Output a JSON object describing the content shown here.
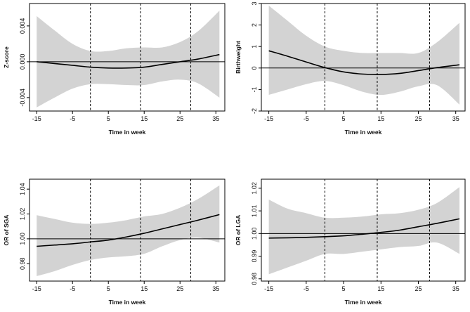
{
  "chart_data": [
    {
      "id": "zscore",
      "type": "line",
      "ylabel": "Z-score",
      "xlabel": "Time in week",
      "xlim": [
        -17,
        37.5
      ],
      "ylim": [
        -0.0055,
        0.0065
      ],
      "xticks": [
        -15,
        -5,
        5,
        15,
        25,
        35
      ],
      "yticks": [
        -0.004,
        0.0,
        0.004
      ],
      "ytick_labels": [
        "-0.004",
        "0.000",
        "0.004"
      ],
      "reference_y": 0.0,
      "vlines": [
        0,
        14,
        28
      ],
      "x": [
        -15,
        -10,
        -5,
        0,
        5,
        10,
        15,
        20,
        25,
        30,
        36
      ],
      "estimate": [
        0.0,
        -0.0002,
        -0.0004,
        -0.0006,
        -0.0007,
        -0.0007,
        -0.0006,
        -0.0003,
        0.0,
        0.0003,
        0.0008
      ],
      "lower": [
        -0.0051,
        -0.004,
        -0.003,
        -0.0025,
        -0.0025,
        -0.0026,
        -0.0026,
        -0.0022,
        -0.002,
        -0.0024,
        -0.004
      ],
      "upper": [
        0.0051,
        0.0035,
        0.002,
        0.0012,
        0.0012,
        0.0015,
        0.0016,
        0.0016,
        0.0022,
        0.0034,
        0.0057
      ]
    },
    {
      "id": "birthweight",
      "type": "line",
      "ylabel": "Birthweight",
      "xlabel": "Time in week",
      "xlim": [
        -17,
        37.5
      ],
      "ylim": [
        -2,
        3
      ],
      "xticks": [
        -15,
        -5,
        5,
        15,
        25,
        35
      ],
      "yticks": [
        -2,
        -1,
        0,
        1,
        2,
        3
      ],
      "ytick_labels": [
        "-2",
        "-1",
        "0",
        "1",
        "2",
        "3"
      ],
      "reference_y": 0,
      "vlines": [
        0,
        14,
        28
      ],
      "x": [
        -15,
        -10,
        -5,
        0,
        5,
        10,
        15,
        20,
        25,
        30,
        36
      ],
      "estimate": [
        0.8,
        0.55,
        0.28,
        0.02,
        -0.18,
        -0.28,
        -0.3,
        -0.25,
        -0.12,
        0.02,
        0.15
      ],
      "lower": [
        -1.25,
        -1.0,
        -0.75,
        -0.6,
        -0.8,
        -1.1,
        -1.25,
        -1.1,
        -0.85,
        -0.8,
        -1.7
      ],
      "upper": [
        2.9,
        2.2,
        1.5,
        1.0,
        0.8,
        0.7,
        0.7,
        0.7,
        0.7,
        1.2,
        2.1
      ]
    },
    {
      "id": "or_sga",
      "type": "line",
      "ylabel": "OR of SGA",
      "xlabel": "Time in week",
      "xlim": [
        -17,
        37.5
      ],
      "ylim": [
        0.966,
        1.048
      ],
      "xticks": [
        -15,
        -5,
        5,
        15,
        25,
        35
      ],
      "yticks": [
        0.98,
        1.0,
        1.02,
        1.04
      ],
      "ytick_labels": [
        "0.98",
        "1.00",
        "1.02",
        "1.04"
      ],
      "reference_y": 1.0,
      "vlines": [
        0,
        14,
        28
      ],
      "x": [
        -15,
        -10,
        -5,
        0,
        5,
        10,
        15,
        20,
        25,
        30,
        36
      ],
      "estimate": [
        0.994,
        0.995,
        0.996,
        0.9975,
        0.999,
        1.0015,
        1.0045,
        1.008,
        1.0115,
        1.015,
        1.0195
      ],
      "lower": [
        0.97,
        0.974,
        0.979,
        0.983,
        0.985,
        0.986,
        0.988,
        0.994,
        0.999,
        1.001,
        0.997
      ],
      "upper": [
        1.019,
        1.016,
        1.013,
        1.012,
        1.013,
        1.015,
        1.018,
        1.02,
        1.025,
        1.032,
        1.043
      ]
    },
    {
      "id": "or_lga",
      "type": "line",
      "ylabel": "OR of LGA",
      "xlabel": "Time in week",
      "xlim": [
        -17,
        37.5
      ],
      "ylim": [
        0.979,
        1.024
      ],
      "xticks": [
        -15,
        -5,
        5,
        15,
        25,
        35
      ],
      "yticks": [
        0.98,
        0.99,
        1.0,
        1.01,
        1.02
      ],
      "ytick_labels": [
        "0.98",
        "0.99",
        "1.00",
        "1.01",
        "1.02"
      ],
      "reference_y": 1.0,
      "vlines": [
        0,
        14,
        28
      ],
      "x": [
        -15,
        -10,
        -5,
        0,
        5,
        10,
        15,
        20,
        25,
        30,
        36
      ],
      "estimate": [
        0.998,
        0.9981,
        0.9983,
        0.9986,
        0.999,
        0.9997,
        1.0005,
        1.0015,
        1.003,
        1.0045,
        1.0065
      ],
      "lower": [
        0.982,
        0.985,
        0.988,
        0.991,
        0.991,
        0.992,
        0.993,
        0.994,
        0.9945,
        0.996,
        0.991
      ],
      "upper": [
        1.015,
        1.011,
        1.009,
        1.007,
        1.007,
        1.0075,
        1.0085,
        1.009,
        1.0105,
        1.0135,
        1.0205
      ]
    }
  ]
}
